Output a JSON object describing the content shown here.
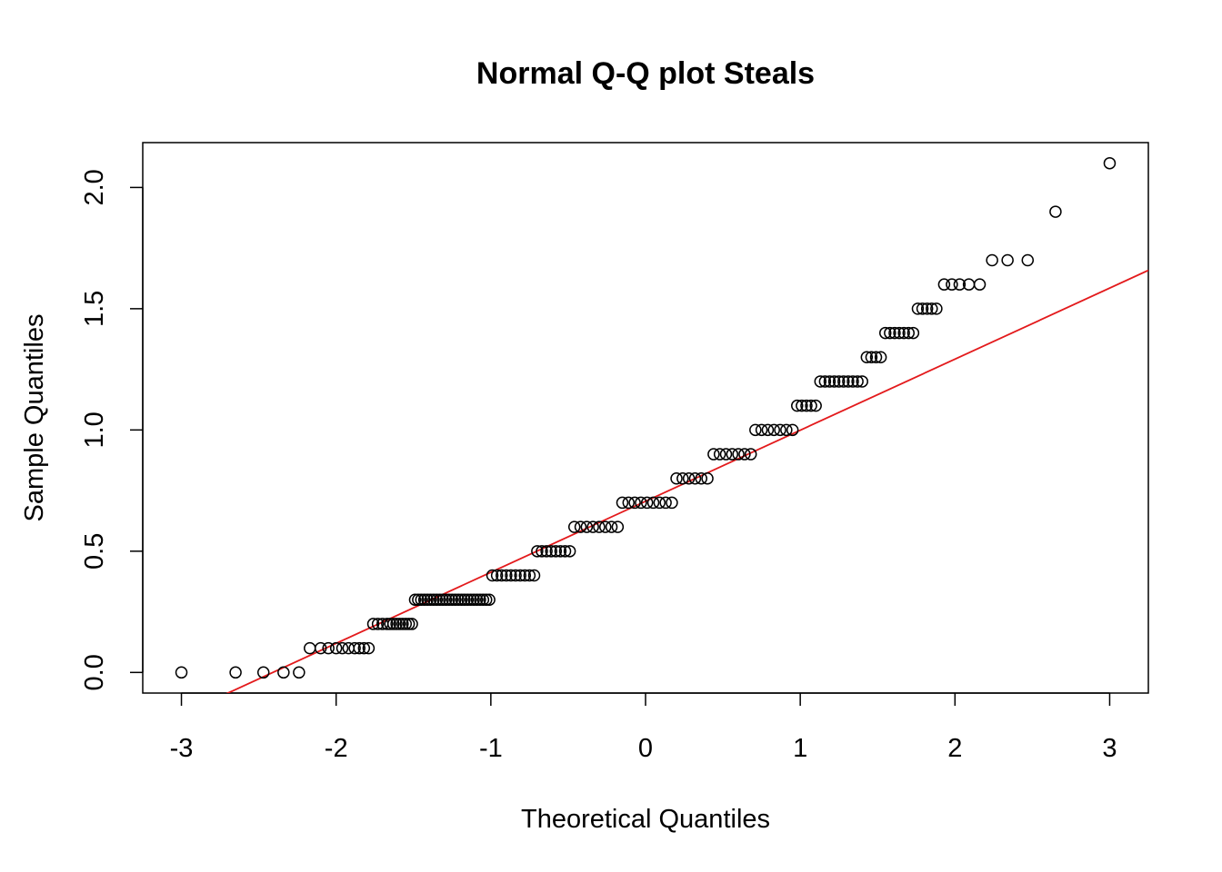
{
  "chart_data": {
    "type": "scatter",
    "subtype": "normal-qq",
    "title": "Normal Q-Q plot Steals",
    "xlabel": "Theoretical Quantiles",
    "ylabel": "Sample Quantiles",
    "xlim": [
      -3.25,
      3.25
    ],
    "ylim": [
      -0.085,
      2.185
    ],
    "x_ticks": [
      -3,
      -2,
      -1,
      0,
      1,
      2,
      3
    ],
    "x_tick_labels": [
      "-3",
      "-2",
      "-1",
      "0",
      "1",
      "2",
      "3"
    ],
    "y_ticks": [
      0.0,
      0.5,
      1.0,
      1.5,
      2.0
    ],
    "y_tick_labels": [
      "0.0",
      "0.5",
      "1.0",
      "1.5",
      "2.0"
    ],
    "grid": false,
    "legend": "none",
    "point_color": "#000000",
    "reference_line": {
      "color": "#e31a1c",
      "intercept": 0.706,
      "slope": 0.293
    },
    "points": [
      {
        "x": -3.0,
        "y": 0.0
      },
      {
        "x": -2.65,
        "y": 0.0
      },
      {
        "x": -2.47,
        "y": 0.0
      },
      {
        "x": -2.34,
        "y": 0.0
      },
      {
        "x": -2.24,
        "y": 0.0
      },
      {
        "x": -2.17,
        "y": 0.1
      },
      {
        "x": -2.1,
        "y": 0.1
      },
      {
        "x": -2.05,
        "y": 0.1
      },
      {
        "x": -2.0,
        "y": 0.1
      },
      {
        "x": -1.96,
        "y": 0.1
      },
      {
        "x": -1.92,
        "y": 0.1
      },
      {
        "x": -1.88,
        "y": 0.1
      },
      {
        "x": -1.85,
        "y": 0.1
      },
      {
        "x": -1.82,
        "y": 0.1
      },
      {
        "x": -1.79,
        "y": 0.1
      },
      {
        "x": -1.76,
        "y": 0.2
      },
      {
        "x": -1.73,
        "y": 0.2
      },
      {
        "x": -1.7,
        "y": 0.2
      },
      {
        "x": -1.67,
        "y": 0.2
      },
      {
        "x": -1.65,
        "y": 0.2
      },
      {
        "x": -1.63,
        "y": 0.2
      },
      {
        "x": -1.61,
        "y": 0.2
      },
      {
        "x": -1.59,
        "y": 0.2
      },
      {
        "x": -1.57,
        "y": 0.2
      },
      {
        "x": -1.55,
        "y": 0.2
      },
      {
        "x": -1.53,
        "y": 0.2
      },
      {
        "x": -1.51,
        "y": 0.2
      },
      {
        "x": -1.49,
        "y": 0.3
      },
      {
        "x": -1.47,
        "y": 0.3
      },
      {
        "x": -1.45,
        "y": 0.3
      },
      {
        "x": -1.43,
        "y": 0.3
      },
      {
        "x": -1.41,
        "y": 0.3
      },
      {
        "x": -1.39,
        "y": 0.3
      },
      {
        "x": -1.37,
        "y": 0.3
      },
      {
        "x": -1.35,
        "y": 0.3
      },
      {
        "x": -1.33,
        "y": 0.3
      },
      {
        "x": -1.31,
        "y": 0.3
      },
      {
        "x": -1.29,
        "y": 0.3
      },
      {
        "x": -1.27,
        "y": 0.3
      },
      {
        "x": -1.25,
        "y": 0.3
      },
      {
        "x": -1.23,
        "y": 0.3
      },
      {
        "x": -1.21,
        "y": 0.3
      },
      {
        "x": -1.19,
        "y": 0.3
      },
      {
        "x": -1.17,
        "y": 0.3
      },
      {
        "x": -1.15,
        "y": 0.3
      },
      {
        "x": -1.13,
        "y": 0.3
      },
      {
        "x": -1.11,
        "y": 0.3
      },
      {
        "x": -1.09,
        "y": 0.3
      },
      {
        "x": -1.07,
        "y": 0.3
      },
      {
        "x": -1.05,
        "y": 0.3
      },
      {
        "x": -1.03,
        "y": 0.3
      },
      {
        "x": -1.01,
        "y": 0.3
      },
      {
        "x": -0.99,
        "y": 0.4
      },
      {
        "x": -0.96,
        "y": 0.4
      },
      {
        "x": -0.93,
        "y": 0.4
      },
      {
        "x": -0.9,
        "y": 0.4
      },
      {
        "x": -0.87,
        "y": 0.4
      },
      {
        "x": -0.84,
        "y": 0.4
      },
      {
        "x": -0.81,
        "y": 0.4
      },
      {
        "x": -0.78,
        "y": 0.4
      },
      {
        "x": -0.75,
        "y": 0.4
      },
      {
        "x": -0.72,
        "y": 0.4
      },
      {
        "x": -0.7,
        "y": 0.5
      },
      {
        "x": -0.67,
        "y": 0.5
      },
      {
        "x": -0.64,
        "y": 0.5
      },
      {
        "x": -0.61,
        "y": 0.5
      },
      {
        "x": -0.58,
        "y": 0.5
      },
      {
        "x": -0.55,
        "y": 0.5
      },
      {
        "x": -0.52,
        "y": 0.5
      },
      {
        "x": -0.49,
        "y": 0.5
      },
      {
        "x": -0.46,
        "y": 0.6
      },
      {
        "x": -0.42,
        "y": 0.6
      },
      {
        "x": -0.38,
        "y": 0.6
      },
      {
        "x": -0.34,
        "y": 0.6
      },
      {
        "x": -0.3,
        "y": 0.6
      },
      {
        "x": -0.26,
        "y": 0.6
      },
      {
        "x": -0.22,
        "y": 0.6
      },
      {
        "x": -0.18,
        "y": 0.6
      },
      {
        "x": -0.15,
        "y": 0.7
      },
      {
        "x": -0.11,
        "y": 0.7
      },
      {
        "x": -0.07,
        "y": 0.7
      },
      {
        "x": -0.03,
        "y": 0.7
      },
      {
        "x": 0.01,
        "y": 0.7
      },
      {
        "x": 0.05,
        "y": 0.7
      },
      {
        "x": 0.09,
        "y": 0.7
      },
      {
        "x": 0.13,
        "y": 0.7
      },
      {
        "x": 0.17,
        "y": 0.7
      },
      {
        "x": 0.2,
        "y": 0.8
      },
      {
        "x": 0.24,
        "y": 0.8
      },
      {
        "x": 0.28,
        "y": 0.8
      },
      {
        "x": 0.32,
        "y": 0.8
      },
      {
        "x": 0.36,
        "y": 0.8
      },
      {
        "x": 0.4,
        "y": 0.8
      },
      {
        "x": 0.44,
        "y": 0.9
      },
      {
        "x": 0.48,
        "y": 0.9
      },
      {
        "x": 0.52,
        "y": 0.9
      },
      {
        "x": 0.56,
        "y": 0.9
      },
      {
        "x": 0.6,
        "y": 0.9
      },
      {
        "x": 0.64,
        "y": 0.9
      },
      {
        "x": 0.68,
        "y": 0.9
      },
      {
        "x": 0.71,
        "y": 1.0
      },
      {
        "x": 0.75,
        "y": 1.0
      },
      {
        "x": 0.79,
        "y": 1.0
      },
      {
        "x": 0.83,
        "y": 1.0
      },
      {
        "x": 0.87,
        "y": 1.0
      },
      {
        "x": 0.91,
        "y": 1.0
      },
      {
        "x": 0.95,
        "y": 1.0
      },
      {
        "x": 0.98,
        "y": 1.1
      },
      {
        "x": 1.01,
        "y": 1.1
      },
      {
        "x": 1.04,
        "y": 1.1
      },
      {
        "x": 1.07,
        "y": 1.1
      },
      {
        "x": 1.1,
        "y": 1.1
      },
      {
        "x": 1.13,
        "y": 1.2
      },
      {
        "x": 1.16,
        "y": 1.2
      },
      {
        "x": 1.19,
        "y": 1.2
      },
      {
        "x": 1.22,
        "y": 1.2
      },
      {
        "x": 1.25,
        "y": 1.2
      },
      {
        "x": 1.28,
        "y": 1.2
      },
      {
        "x": 1.31,
        "y": 1.2
      },
      {
        "x": 1.34,
        "y": 1.2
      },
      {
        "x": 1.37,
        "y": 1.2
      },
      {
        "x": 1.4,
        "y": 1.2
      },
      {
        "x": 1.43,
        "y": 1.3
      },
      {
        "x": 1.46,
        "y": 1.3
      },
      {
        "x": 1.49,
        "y": 1.3
      },
      {
        "x": 1.52,
        "y": 1.3
      },
      {
        "x": 1.55,
        "y": 1.4
      },
      {
        "x": 1.58,
        "y": 1.4
      },
      {
        "x": 1.61,
        "y": 1.4
      },
      {
        "x": 1.64,
        "y": 1.4
      },
      {
        "x": 1.67,
        "y": 1.4
      },
      {
        "x": 1.7,
        "y": 1.4
      },
      {
        "x": 1.73,
        "y": 1.4
      },
      {
        "x": 1.76,
        "y": 1.5
      },
      {
        "x": 1.79,
        "y": 1.5
      },
      {
        "x": 1.82,
        "y": 1.5
      },
      {
        "x": 1.85,
        "y": 1.5
      },
      {
        "x": 1.88,
        "y": 1.5
      },
      {
        "x": 1.93,
        "y": 1.6
      },
      {
        "x": 1.98,
        "y": 1.6
      },
      {
        "x": 2.03,
        "y": 1.6
      },
      {
        "x": 2.09,
        "y": 1.6
      },
      {
        "x": 2.16,
        "y": 1.6
      },
      {
        "x": 2.24,
        "y": 1.7
      },
      {
        "x": 2.34,
        "y": 1.7
      },
      {
        "x": 2.47,
        "y": 1.7
      },
      {
        "x": 2.65,
        "y": 1.9
      },
      {
        "x": 3.0,
        "y": 2.1
      }
    ]
  }
}
